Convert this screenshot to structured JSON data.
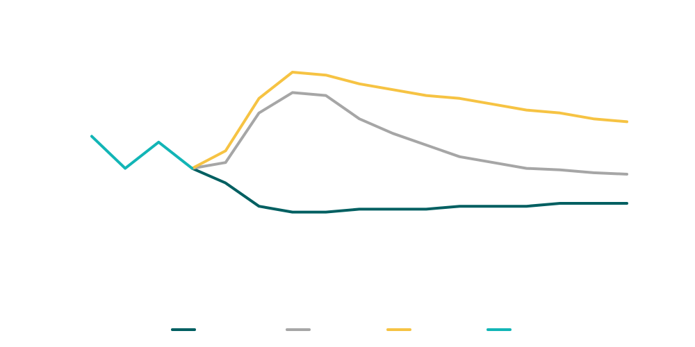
{
  "chart_data": {
    "type": "line",
    "title": "",
    "xlabel": "",
    "ylabel": "",
    "ylim": [
      0,
      100
    ],
    "grid": false,
    "legend_position": "bottom",
    "x": [
      0,
      1,
      2,
      3,
      4,
      5,
      6,
      7,
      8,
      9,
      10,
      11,
      12,
      13,
      14,
      15,
      16
    ],
    "series": [
      {
        "color": "#005f61",
        "points": [
          [
            3,
            47
          ],
          [
            4,
            42
          ],
          [
            5,
            34
          ],
          [
            6,
            32
          ],
          [
            7,
            32
          ],
          [
            8,
            33
          ],
          [
            9,
            33
          ],
          [
            10,
            33
          ],
          [
            11,
            34
          ],
          [
            12,
            34
          ],
          [
            13,
            34
          ],
          [
            14,
            35
          ],
          [
            15,
            35
          ],
          [
            16,
            35
          ]
        ]
      },
      {
        "color": "#a6a6a6",
        "points": [
          [
            3,
            47
          ],
          [
            4,
            49
          ],
          [
            5,
            66
          ],
          [
            6,
            73
          ],
          [
            7,
            72
          ],
          [
            8,
            64
          ],
          [
            9,
            59
          ],
          [
            10,
            55
          ],
          [
            11,
            51
          ],
          [
            12,
            49
          ],
          [
            13,
            47
          ],
          [
            14,
            46.5
          ],
          [
            15,
            45.5
          ],
          [
            16,
            45
          ]
        ]
      },
      {
        "color": "#f6c343",
        "points": [
          [
            3,
            47
          ],
          [
            4,
            53
          ],
          [
            5,
            71
          ],
          [
            6,
            80
          ],
          [
            7,
            79
          ],
          [
            8,
            76
          ],
          [
            9,
            74
          ],
          [
            10,
            72
          ],
          [
            11,
            71
          ],
          [
            12,
            69
          ],
          [
            13,
            67
          ],
          [
            14,
            66
          ],
          [
            15,
            64
          ],
          [
            16,
            63
          ]
        ]
      },
      {
        "color": "#12b5b6",
        "points": [
          [
            0,
            58
          ],
          [
            1,
            47
          ],
          [
            2,
            56
          ],
          [
            3,
            47
          ]
        ]
      }
    ]
  }
}
